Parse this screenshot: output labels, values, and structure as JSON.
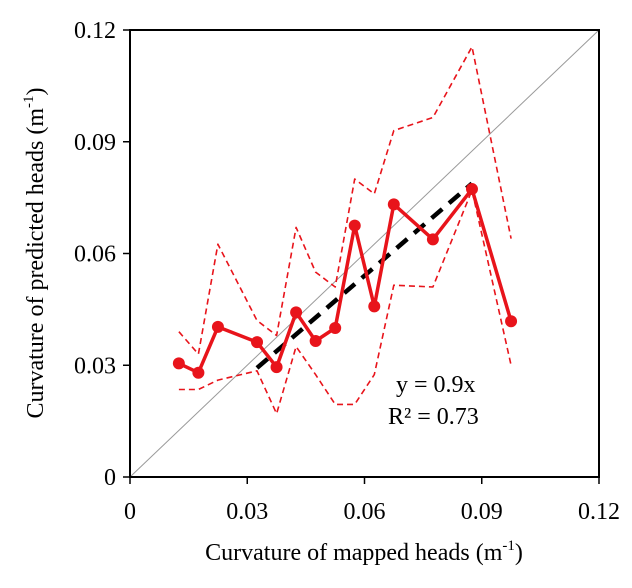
{
  "chart_data": {
    "type": "line",
    "xlabel": "Curvature of mapped heads (m",
    "xlabel_sup": "-1",
    "xlabel_close": ")",
    "ylabel": "Curvature of predicted heads (m",
    "ylabel_sup": "-1",
    "ylabel_close": ")",
    "xlim": [
      0,
      0.12
    ],
    "ylim": [
      0,
      0.12
    ],
    "xticks": [
      0,
      0.03,
      0.06,
      0.09,
      0.12
    ],
    "yticks": [
      0,
      0.03,
      0.06,
      0.09,
      0.12
    ],
    "xtick_labels": [
      "0",
      "0.03",
      "0.06",
      "0.09",
      "0.12"
    ],
    "ytick_labels": [
      "0",
      "0.03",
      "0.06",
      "0.09",
      "0.12"
    ],
    "grid": false,
    "series": [
      {
        "role": "observed",
        "style": "solid-markers",
        "color": "#e8141b",
        "x": [
          0.0125,
          0.0175,
          0.0225,
          0.0325,
          0.0375,
          0.0425,
          0.0475,
          0.0525,
          0.0575,
          0.0625,
          0.0675,
          0.0775,
          0.0875,
          0.0975
        ],
        "y": [
          0.0305,
          0.028,
          0.0403,
          0.0362,
          0.0295,
          0.0442,
          0.0365,
          0.04,
          0.0675,
          0.0458,
          0.0732,
          0.0638,
          0.0773,
          0.0418
        ]
      },
      {
        "role": "upper-bound",
        "style": "dashed",
        "color": "#e8141b",
        "x": [
          0.0125,
          0.0175,
          0.0225,
          0.0325,
          0.0375,
          0.0425,
          0.0475,
          0.0525,
          0.0575,
          0.0625,
          0.0675,
          0.0775,
          0.0875,
          0.0975
        ],
        "y": [
          0.039,
          0.033,
          0.0625,
          0.042,
          0.038,
          0.067,
          0.055,
          0.051,
          0.08,
          0.076,
          0.093,
          0.0965,
          0.1155,
          0.064
        ]
      },
      {
        "role": "lower-bound",
        "style": "dashed",
        "color": "#e8141b",
        "x": [
          0.0125,
          0.0175,
          0.0225,
          0.0325,
          0.0375,
          0.0425,
          0.0475,
          0.0525,
          0.0575,
          0.0625,
          0.0675,
          0.0775,
          0.0875,
          0.0975
        ],
        "y": [
          0.0235,
          0.0235,
          0.026,
          0.0285,
          0.017,
          0.035,
          0.0275,
          0.0195,
          0.0195,
          0.0275,
          0.0515,
          0.051,
          0.077,
          0.03
        ]
      },
      {
        "role": "regression",
        "style": "bold-dashed",
        "color": "#000000",
        "x": [
          0.0325,
          0.0875
        ],
        "y": [
          0.0293,
          0.0788
        ]
      },
      {
        "role": "identity",
        "style": "thin-solid",
        "color": "#9a9a9a",
        "x": [
          0,
          0.12
        ],
        "y": [
          0,
          0.12
        ]
      }
    ],
    "annotations": {
      "equation": "y = 0.9x",
      "r2": "R² = 0.73"
    }
  }
}
